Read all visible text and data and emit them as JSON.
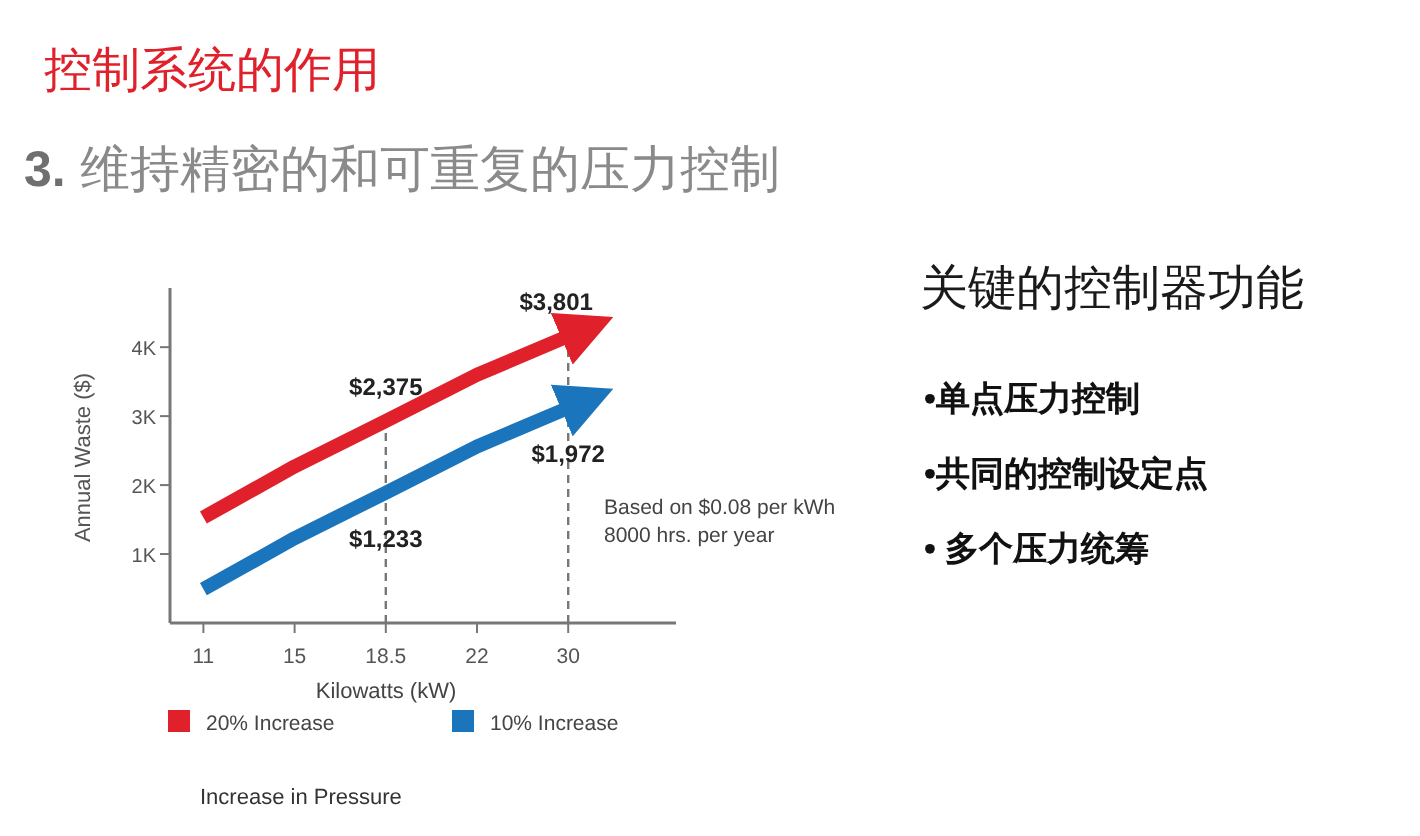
{
  "chart_data": {
    "type": "line",
    "title": "控制系统的作用",
    "subtitle": "**3.** 维持精密的和可重复的压力控制",
    "xlabel": "Kilowatts (kW)",
    "ylabel": "Annual Waste ($)",
    "legend_title": "Increase in Pressure",
    "categories": [
      "11",
      "15",
      "18.5",
      "22",
      "30"
    ],
    "series": [
      {
        "name": "20% Increase",
        "color": "#e0202a",
        "values": [
          1530,
          2270,
          2930,
          3600,
          4160
        ]
      },
      {
        "name": "10% Increase",
        "color": "#1a75bc",
        "values": [
          490,
          1230,
          1890,
          2560,
          3120
        ]
      }
    ],
    "ylim": [
      0,
      4800
    ],
    "yticks": [
      {
        "value": 1000,
        "label": "1K"
      },
      {
        "value": 2000,
        "label": "2K"
      },
      {
        "value": 3000,
        "label": "3K"
      },
      {
        "value": 4000,
        "label": "4K"
      }
    ],
    "ref_lines": [
      {
        "axis": "x",
        "value": "18.5",
        "color": "#777777",
        "line_style": "dashed"
      },
      {
        "axis": "x",
        "value": "30",
        "color": "#777777",
        "line_style": "dashed"
      }
    ],
    "annotations": [
      {
        "text": "$2,375",
        "x": "18.5",
        "y": 2930
      },
      {
        "text": "$1,233",
        "x": "18.5",
        "y": 1890
      },
      {
        "text": "$3,801",
        "x": "30",
        "y": 4160
      },
      {
        "text": "$1,972",
        "x": "30",
        "y": 3120
      },
      "Based on $0.08 per kWh\n8000 hrs. per year",
      "关键的控制器功能",
      "•单点压力控制",
      "•共同的控制设定点",
      "• 多个压力统筹"
    ],
    "legend": "bottom",
    "grid": false,
    "marker": "none",
    "line_style": "solid"
  }
}
